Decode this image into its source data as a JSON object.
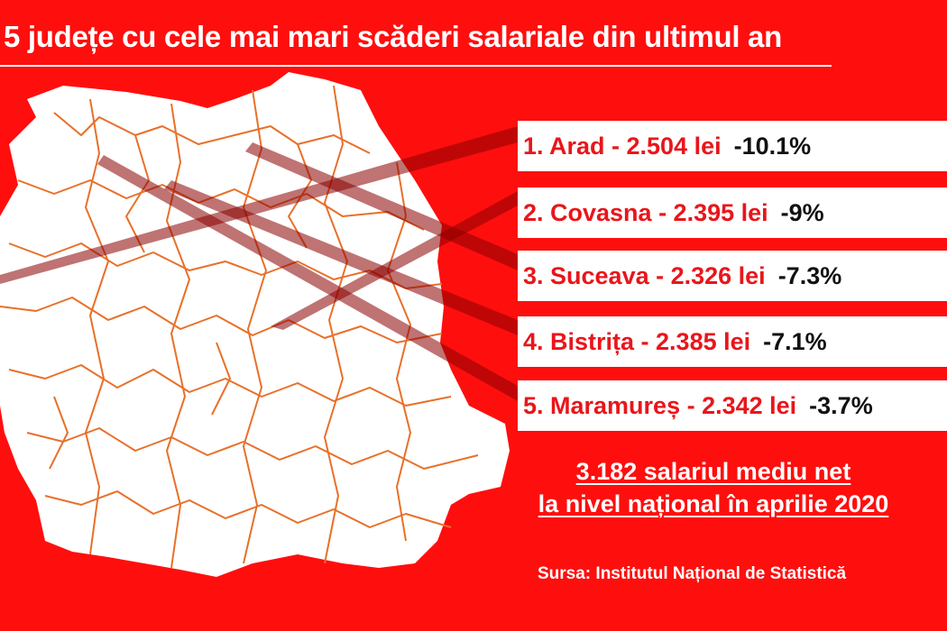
{
  "title": "5 județe cu cele mai mari scăderi salariale din ultimul an",
  "counties": [
    {
      "label": "1. Arad - 2.504 lei",
      "change": "-10.1%"
    },
    {
      "label": "2. Covasna - 2.395 lei",
      "change": "-9%"
    },
    {
      "label": "3. Suceava - 2.326 lei",
      "change": "-7.3%"
    },
    {
      "label": "4. Bistrița - 2.385 lei",
      "change": "-7.1%"
    },
    {
      "label": "5. Maramureș - 2.342 lei",
      "change": "-3.7%"
    }
  ],
  "summary": {
    "line1": "3.182 salariul mediu net",
    "line2": "la nivel național în aprilie 2020"
  },
  "source": "Sursa: Institutul Național de Statistică",
  "colors": {
    "background": "#ff0e0e",
    "accent": "#e8161b",
    "map_fill": "#ffffff",
    "county_border": "#e8702a",
    "pointer": "#8b0000"
  }
}
